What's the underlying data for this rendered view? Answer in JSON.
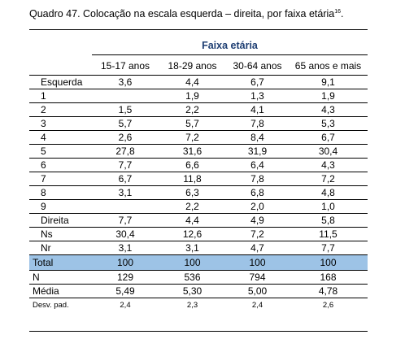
{
  "caption": {
    "text": "Quadro 47. Colocação na escala esquerda – direita, por faixa etária",
    "footnote": "16",
    "trailing": "."
  },
  "table": {
    "group_header": "Faixa etária",
    "columns": [
      "15-17 anos",
      "18-29 anos",
      "30-64 anos",
      "65 anos e mais"
    ],
    "rows": [
      {
        "label": "Esquerda",
        "values": [
          "3,6",
          "4,4",
          "6,7",
          "9,1"
        ]
      },
      {
        "label": "1",
        "values": [
          "",
          "1,9",
          "1,3",
          "1,9"
        ]
      },
      {
        "label": "2",
        "values": [
          "1,5",
          "2,2",
          "4,1",
          "4,3"
        ]
      },
      {
        "label": "3",
        "values": [
          "5,7",
          "5,7",
          "7,8",
          "5,3"
        ]
      },
      {
        "label": "4",
        "values": [
          "2,6",
          "7,2",
          "8,4",
          "6,7"
        ]
      },
      {
        "label": "5",
        "values": [
          "27,8",
          "31,6",
          "31,9",
          "30,4"
        ]
      },
      {
        "label": "6",
        "values": [
          "7,7",
          "6,6",
          "6,4",
          "4,3"
        ]
      },
      {
        "label": "7",
        "values": [
          "6,7",
          "11,8",
          "7,8",
          "7,2"
        ]
      },
      {
        "label": "8",
        "values": [
          "3,1",
          "6,3",
          "6,8",
          "4,8"
        ]
      },
      {
        "label": "9",
        "values": [
          "",
          "2,2",
          "2,0",
          "1,0"
        ]
      },
      {
        "label": "Direita",
        "values": [
          "7,7",
          "4,4",
          "4,9",
          "5,8"
        ]
      },
      {
        "label": "Ns",
        "values": [
          "30,4",
          "12,6",
          "7,2",
          "11,5"
        ]
      },
      {
        "label": "Nr",
        "values": [
          "3,1",
          "3,1",
          "4,7",
          "7,7"
        ]
      }
    ],
    "total": {
      "label": "Total",
      "values": [
        "100",
        "100",
        "100",
        "100"
      ]
    },
    "n": {
      "label": "N",
      "values": [
        "129",
        "536",
        "794",
        "168"
      ]
    },
    "media": {
      "label": "Média",
      "values": [
        "5,49",
        "5,30",
        "5,00",
        "4,78"
      ]
    },
    "desv": {
      "label": "Desv. pad.",
      "values": [
        "2,4",
        "2,3",
        "2,4",
        "2,6"
      ]
    }
  },
  "colors": {
    "header_text": "#1f3f73",
    "total_row_bg": "#9dc3e6"
  }
}
